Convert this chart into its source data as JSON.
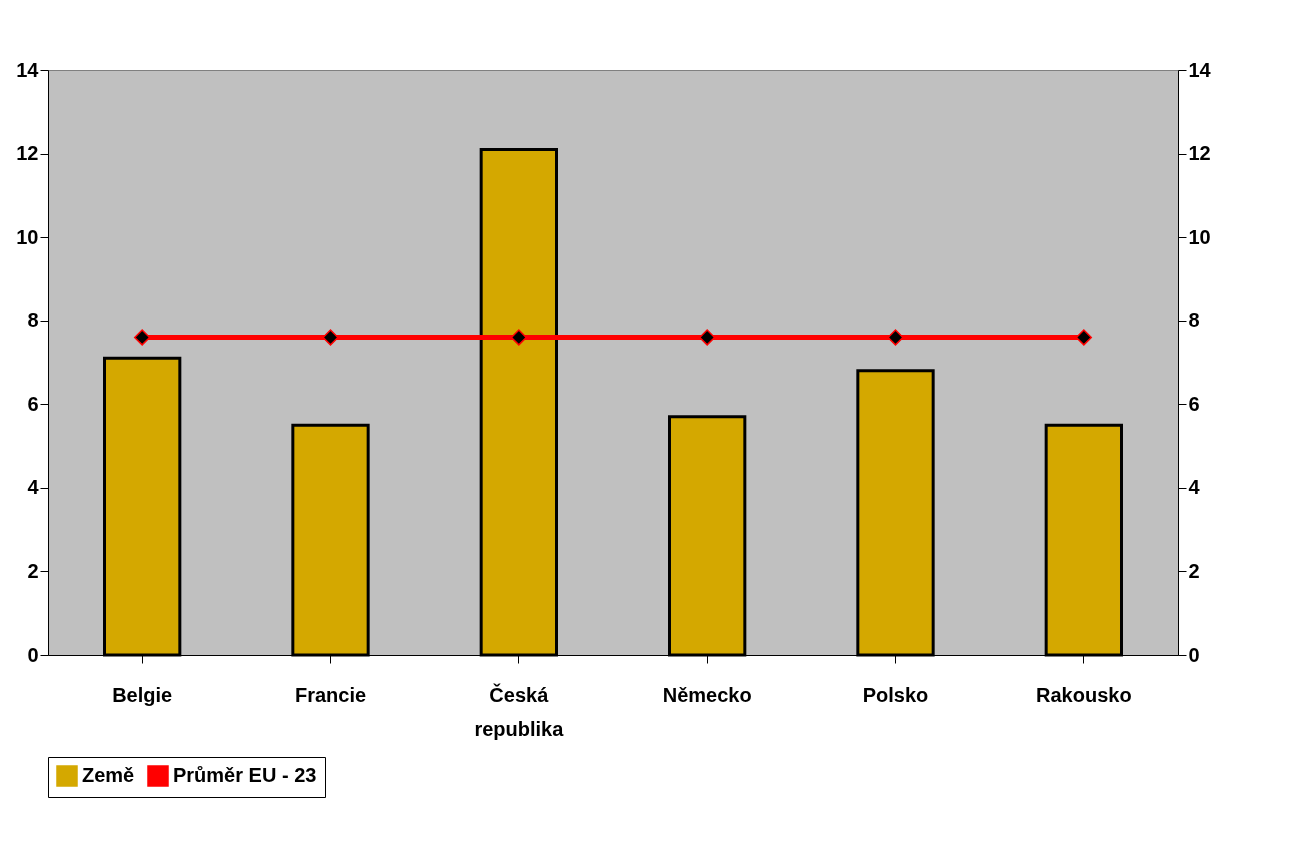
{
  "chart_data": {
    "type": "bar",
    "categories": [
      "Belgie",
      "Francie",
      "Česká republika",
      "Německo",
      "Polsko",
      "Rakousko"
    ],
    "series": [
      {
        "name": "Země",
        "color": "#d4a800",
        "values": [
          7.1,
          5.5,
          12.1,
          5.7,
          6.8,
          5.5
        ]
      },
      {
        "name": "Průměr EU - 23",
        "type": "line",
        "color": "#ff0000",
        "marker": "diamond",
        "values": [
          7.6,
          7.6,
          7.6,
          7.6,
          7.6,
          7.6
        ]
      }
    ],
    "ylim": [
      0,
      14
    ],
    "yticks": [
      0,
      2,
      4,
      6,
      8,
      10,
      12,
      14
    ],
    "y2lim": [
      0,
      14
    ],
    "y2ticks": [
      0,
      2,
      4,
      6,
      8,
      10,
      12,
      14
    ],
    "grid": false,
    "legend": "bottom"
  }
}
